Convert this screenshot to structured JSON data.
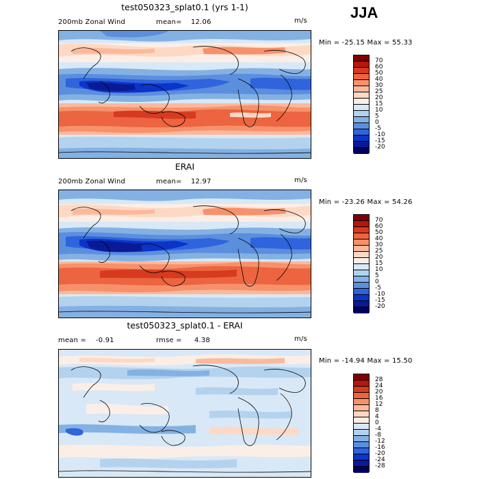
{
  "season": "JJA",
  "panels": [
    {
      "id": "model",
      "title": "test050323_splat0.1 (yrs 1-1)",
      "left_label": "200mb Zonal Wind",
      "stat_label": "mean=",
      "stat_value": "12.06",
      "units": "m/s",
      "minmax": "Min = -25.15 Max =  55.33",
      "colorbar": [
        "70",
        "60",
        "50",
        "40",
        "30",
        "25",
        "20",
        "15",
        "10",
        "5",
        "0",
        "-5",
        "-10",
        "-15",
        "-20"
      ]
    },
    {
      "id": "obs",
      "title": "ERAI",
      "left_label": "200mb Zonal Wind",
      "stat_label": "mean=",
      "stat_value": "12.97",
      "units": "m/s",
      "minmax": "Min = -23.26 Max =  54.26",
      "colorbar": [
        "70",
        "60",
        "50",
        "40",
        "30",
        "25",
        "20",
        "15",
        "10",
        "5",
        "0",
        "-5",
        "-10",
        "-15",
        "-20"
      ]
    },
    {
      "id": "diff",
      "title": "test050323_splat0.1 - ERAI",
      "left_label": "mean =",
      "left_value": "-0.91",
      "stat_label": "rmse =",
      "stat_value": "4.38",
      "units": "m/s",
      "minmax": "Min = -14.94 Max =  15.50",
      "colorbar": [
        "28",
        "24",
        "20",
        "16",
        "12",
        "8",
        "4",
        "0",
        "-4",
        "-8",
        "-12",
        "-16",
        "-20",
        "-24",
        "-28"
      ]
    }
  ],
  "colors": {
    "field_scale": [
      "#7f0000",
      "#b2180b",
      "#d63a1f",
      "#ec6440",
      "#f7916b",
      "#fbb99c",
      "#fdd9c5",
      "#fbeee6",
      "#d9e8f6",
      "#b3d2ee",
      "#84b1e3",
      "#5b8fde",
      "#2f64dd",
      "#0c34c8",
      "#0a1a96",
      "#000060"
    ],
    "diff_scale": [
      "#7f0000",
      "#b2180b",
      "#d63a1f",
      "#ec6440",
      "#f7916b",
      "#fbb99c",
      "#fdd9c5",
      "#fbeee6",
      "#d9e8f6",
      "#b3d2ee",
      "#84b1e3",
      "#5b8fde",
      "#2f64dd",
      "#0c34c8",
      "#0a1a96",
      "#000060"
    ],
    "coast": "#000000"
  }
}
